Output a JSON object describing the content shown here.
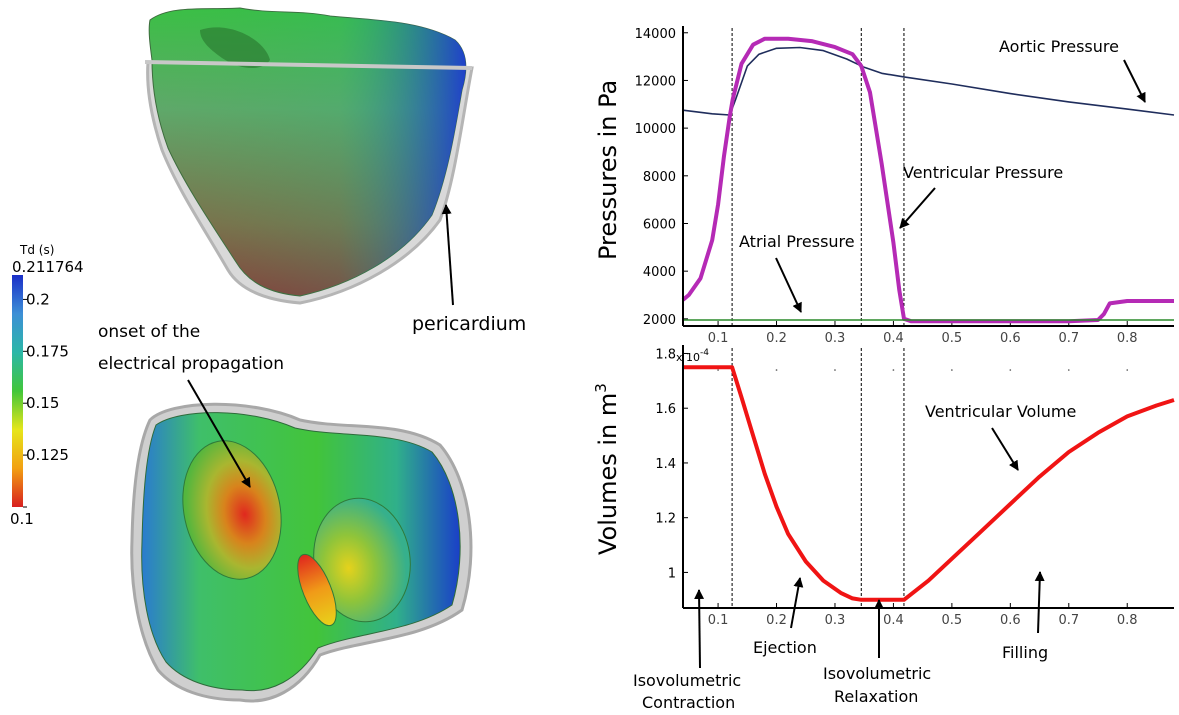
{
  "colorbar": {
    "title": "Td (s)",
    "max_label": "0.211764",
    "tick_labels": [
      "0.2",
      "0.175",
      "0.15",
      "0.125",
      "0.1"
    ],
    "tick_values": [
      0.2,
      0.175,
      0.15,
      0.125,
      0.1
    ],
    "range": [
      0.1,
      0.211764
    ],
    "colors": [
      "#d81f1f",
      "#f2a012",
      "#e6e61a",
      "#41c63a",
      "#2bb7a8",
      "#3d8fd6",
      "#1a2fc8"
    ]
  },
  "annotations": {
    "pericardium": "pericardium",
    "onset_line1": "onset of the",
    "onset_line2": "electrical propagation",
    "aortic": "Aortic Pressure",
    "ventricular_pressure": "Ventricular Pressure",
    "atrial": "Atrial Pressure",
    "ventricular_volume": "Ventricular Volume",
    "isovolumetric_contraction_1": "Isovolumetric",
    "isovolumetric_contraction_2": "Contraction",
    "ejection": "Ejection",
    "isovolumetric_relaxation_1": "Isovolumetric",
    "isovolumetric_relaxation_2": "Relaxation",
    "filling": "Filling"
  },
  "chart_data": [
    {
      "type": "line",
      "ylabel": "Pressures in Pa",
      "xlim": [
        0.04,
        0.88
      ],
      "ylim": [
        1700,
        14200
      ],
      "xticks": [
        0.1,
        0.2,
        0.3,
        0.4,
        0.5,
        0.6,
        0.7,
        0.8
      ],
      "xtick_labels": [
        "0.1",
        "0.2",
        "0.3",
        "0.4",
        "0.5",
        "0.6",
        "0.7",
        "0.8"
      ],
      "yticks": [
        2000,
        4000,
        6000,
        8000,
        10000,
        12000,
        14000
      ],
      "ytick_labels": [
        "2000",
        "4000",
        "6000",
        "8000",
        "10000",
        "12000",
        "14000"
      ],
      "phase_lines_x": [
        0.124,
        0.345,
        0.418
      ],
      "series": [
        {
          "name": "Aortic Pressure",
          "color": "#1f2d5c",
          "x": [
            0.04,
            0.09,
            0.12,
            0.13,
            0.15,
            0.17,
            0.2,
            0.24,
            0.28,
            0.32,
            0.35,
            0.38,
            0.418,
            0.5,
            0.6,
            0.7,
            0.8,
            0.88
          ],
          "y": [
            10750,
            10600,
            10550,
            11200,
            12600,
            13100,
            13350,
            13380,
            13250,
            12900,
            12550,
            12300,
            12150,
            11850,
            11450,
            11100,
            10800,
            10550
          ]
        },
        {
          "name": "Ventricular Pressure",
          "color": "#b52ab5",
          "x": [
            0.04,
            0.05,
            0.07,
            0.09,
            0.1,
            0.11,
            0.12,
            0.125,
            0.14,
            0.16,
            0.18,
            0.22,
            0.26,
            0.3,
            0.33,
            0.345,
            0.36,
            0.38,
            0.4,
            0.41,
            0.418,
            0.43,
            0.5,
            0.6,
            0.7,
            0.75,
            0.76,
            0.77,
            0.8,
            0.88
          ],
          "y": [
            2800,
            3000,
            3700,
            5300,
            6800,
            8800,
            10500,
            11200,
            12700,
            13500,
            13750,
            13750,
            13650,
            13400,
            13100,
            12600,
            11500,
            8500,
            5200,
            3200,
            2000,
            1900,
            1900,
            1900,
            1900,
            1950,
            2200,
            2650,
            2750,
            2750
          ]
        },
        {
          "name": "Atrial Pressure",
          "color": "#2a8a2a",
          "x": [
            0.04,
            0.88
          ],
          "y": [
            1950,
            1950
          ]
        }
      ]
    },
    {
      "type": "line",
      "ylabel": "Volumes in m",
      "ylabel_sup": "3",
      "axis_multiplier": "x 10",
      "axis_multiplier_exp": "-4",
      "xlim": [
        0.04,
        0.88
      ],
      "ylim": [
        0.87,
        1.82
      ],
      "xticks": [
        0.1,
        0.2,
        0.3,
        0.4,
        0.5,
        0.6,
        0.7,
        0.8
      ],
      "xtick_labels": [
        "0.1",
        "0.2",
        "0.3",
        "0.4",
        "0.5",
        "0.6",
        "0.7",
        "0.8"
      ],
      "yticks": [
        1,
        1.2,
        1.4,
        1.6,
        1.8
      ],
      "ytick_labels": [
        "1",
        "1.2",
        "1.4",
        "1.6",
        "1.8"
      ],
      "phase_lines_x": [
        0.124,
        0.345,
        0.418
      ],
      "series": [
        {
          "name": "Ventricular Volume",
          "color": "#f01414",
          "x": [
            0.04,
            0.124,
            0.14,
            0.16,
            0.18,
            0.2,
            0.22,
            0.25,
            0.28,
            0.31,
            0.33,
            0.345,
            0.38,
            0.418,
            0.43,
            0.46,
            0.5,
            0.55,
            0.6,
            0.65,
            0.7,
            0.75,
            0.8,
            0.85,
            0.88
          ],
          "y": [
            1.75,
            1.75,
            1.64,
            1.5,
            1.36,
            1.24,
            1.14,
            1.04,
            0.97,
            0.925,
            0.905,
            0.9,
            0.9,
            0.9,
            0.92,
            0.97,
            1.05,
            1.15,
            1.25,
            1.35,
            1.44,
            1.51,
            1.57,
            1.61,
            1.63
          ]
        }
      ]
    }
  ]
}
